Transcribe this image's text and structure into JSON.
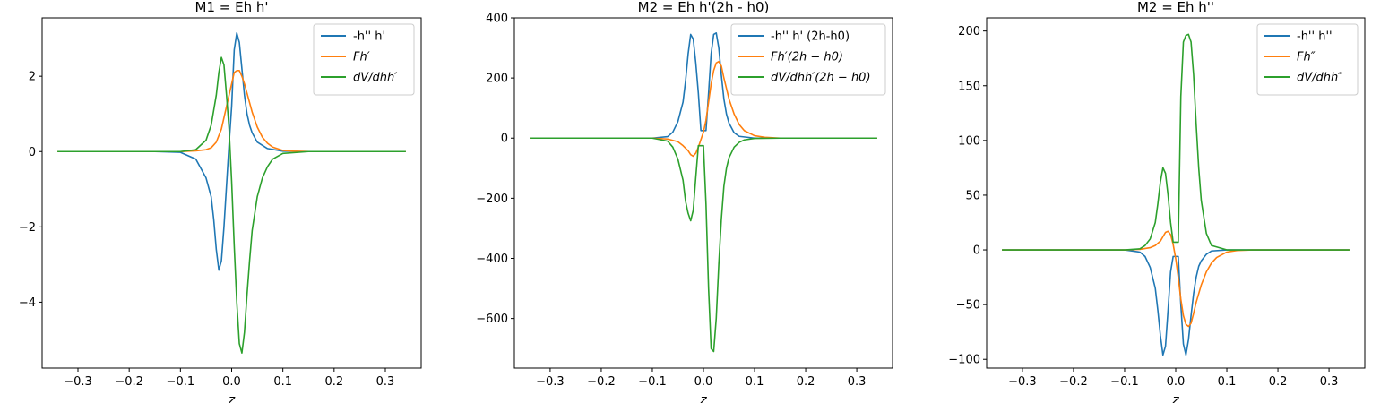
{
  "chart_data": [
    {
      "type": "line",
      "title": "M1 = Eh h'",
      "xlabel": "z",
      "ylabel": "",
      "xlim": [
        -0.37,
        0.37
      ],
      "ylim": [
        -5.75,
        3.55
      ],
      "xticks": [
        -0.3,
        -0.2,
        -0.1,
        0.0,
        0.1,
        0.2,
        0.3
      ],
      "xtick_labels": [
        "−0.3",
        "−0.2",
        "−0.1",
        "0.0",
        "0.1",
        "0.2",
        "0.3"
      ],
      "yticks": [
        -4,
        -2,
        0,
        2
      ],
      "ytick_labels": [
        "−4",
        "−2",
        "0",
        "2"
      ],
      "legend_position": "top-right",
      "series": [
        {
          "name": "-h'' h'",
          "color": "#1f77b4",
          "x": [
            -0.34,
            -0.15,
            -0.1,
            -0.07,
            -0.05,
            -0.04,
            -0.035,
            -0.03,
            -0.025,
            -0.02,
            -0.015,
            -0.01,
            -0.005,
            0.0,
            0.005,
            0.01,
            0.015,
            0.02,
            0.025,
            0.03,
            0.035,
            0.04,
            0.05,
            0.07,
            0.1,
            0.15,
            0.34
          ],
          "y": [
            0,
            0,
            -0.02,
            -0.2,
            -0.7,
            -1.2,
            -1.8,
            -2.6,
            -3.15,
            -2.9,
            -2.0,
            -0.9,
            0.2,
            1.2,
            2.7,
            3.15,
            2.9,
            2.2,
            1.5,
            1.0,
            0.7,
            0.5,
            0.25,
            0.08,
            0.01,
            0,
            0
          ]
        },
        {
          "name": "Fh'",
          "label": "Fh′",
          "color": "#ff7f0e",
          "x": [
            -0.34,
            -0.1,
            -0.07,
            -0.05,
            -0.04,
            -0.03,
            -0.02,
            -0.01,
            0.0,
            0.005,
            0.01,
            0.015,
            0.02,
            0.025,
            0.03,
            0.04,
            0.05,
            0.06,
            0.07,
            0.08,
            0.1,
            0.12,
            0.15,
            0.34
          ],
          "y": [
            0,
            0,
            0.02,
            0.05,
            0.1,
            0.25,
            0.6,
            1.2,
            1.8,
            2.1,
            2.15,
            2.15,
            2.0,
            1.8,
            1.55,
            1.05,
            0.65,
            0.38,
            0.22,
            0.12,
            0.03,
            0.01,
            0,
            0
          ]
        },
        {
          "name": "dV/dhh'",
          "label": "dV/dhh′",
          "color": "#2ca02c",
          "x": [
            -0.34,
            -0.1,
            -0.07,
            -0.05,
            -0.04,
            -0.03,
            -0.025,
            -0.02,
            -0.015,
            -0.01,
            -0.005,
            0.0,
            0.005,
            0.01,
            0.015,
            0.02,
            0.025,
            0.03,
            0.035,
            0.04,
            0.05,
            0.06,
            0.07,
            0.08,
            0.1,
            0.15,
            0.34
          ],
          "y": [
            0,
            0,
            0.05,
            0.3,
            0.7,
            1.5,
            2.1,
            2.5,
            2.3,
            1.5,
            0.6,
            -0.8,
            -2.5,
            -4.0,
            -5.1,
            -5.35,
            -4.8,
            -3.8,
            -2.9,
            -2.1,
            -1.2,
            -0.7,
            -0.4,
            -0.2,
            -0.05,
            0,
            0
          ]
        }
      ]
    },
    {
      "type": "line",
      "title": "M2 = Eh h'(2h - h0)",
      "xlabel": "z",
      "ylabel": "",
      "xlim": [
        -0.37,
        0.37
      ],
      "ylim": [
        -765,
        400
      ],
      "xticks": [
        -0.3,
        -0.2,
        -0.1,
        0.0,
        0.1,
        0.2,
        0.3
      ],
      "xtick_labels": [
        "−0.3",
        "−0.2",
        "−0.1",
        "0.0",
        "0.1",
        "0.2",
        "0.3"
      ],
      "yticks": [
        -600,
        -400,
        -200,
        0,
        200,
        400
      ],
      "ytick_labels": [
        "−600",
        "−400",
        "−200",
        "0",
        "200",
        "400"
      ],
      "legend_position": "top-right",
      "series": [
        {
          "name": "-h'' h' (2h-h0)",
          "color": "#1f77b4",
          "x": [
            -0.34,
            -0.1,
            -0.07,
            -0.06,
            -0.05,
            -0.04,
            -0.035,
            -0.03,
            -0.025,
            -0.02,
            -0.015,
            -0.01,
            -0.005,
            0.0,
            0.005,
            0.01,
            0.015,
            0.02,
            0.025,
            0.03,
            0.035,
            0.04,
            0.045,
            0.05,
            0.06,
            0.07,
            0.1,
            0.34
          ],
          "y": [
            0,
            0,
            5,
            20,
            55,
            120,
            190,
            280,
            345,
            330,
            250,
            150,
            25,
            25,
            25,
            150,
            280,
            345,
            350,
            300,
            210,
            130,
            80,
            50,
            18,
            6,
            0,
            0
          ]
        },
        {
          "name": "Fh'(2h-h0)",
          "label": "Fh′(2h − h0)",
          "color": "#ff7f0e",
          "x": [
            -0.34,
            -0.1,
            -0.07,
            -0.05,
            -0.04,
            -0.03,
            -0.025,
            -0.02,
            -0.015,
            -0.01,
            -0.005,
            0.0,
            0.005,
            0.01,
            0.015,
            0.02,
            0.025,
            0.03,
            0.035,
            0.04,
            0.05,
            0.06,
            0.07,
            0.08,
            0.1,
            0.12,
            0.15,
            0.34
          ],
          "y": [
            0,
            0,
            -3,
            -12,
            -25,
            -42,
            -55,
            -60,
            -50,
            -30,
            -5,
            20,
            60,
            120,
            180,
            225,
            250,
            255,
            240,
            200,
            130,
            80,
            45,
            25,
            8,
            3,
            0,
            0
          ]
        },
        {
          "name": "dV/dhh'(2h-h0)",
          "label": "dV/dhh′(2h − h0)",
          "color": "#2ca02c",
          "x": [
            -0.34,
            -0.1,
            -0.07,
            -0.06,
            -0.05,
            -0.04,
            -0.035,
            -0.03,
            -0.025,
            -0.02,
            -0.015,
            -0.01,
            -0.005,
            0.0,
            0.005,
            0.01,
            0.015,
            0.02,
            0.025,
            0.03,
            0.035,
            0.04,
            0.045,
            0.05,
            0.06,
            0.07,
            0.08,
            0.1,
            0.15,
            0.34
          ],
          "y": [
            0,
            0,
            -10,
            -30,
            -70,
            -140,
            -210,
            -250,
            -275,
            -240,
            -130,
            -25,
            -25,
            -25,
            -220,
            -500,
            -700,
            -710,
            -600,
            -420,
            -270,
            -160,
            -100,
            -65,
            -30,
            -14,
            -6,
            -1,
            0,
            0
          ]
        }
      ]
    },
    {
      "type": "line",
      "title": "M2 = Eh h''",
      "xlabel": "z",
      "ylabel": "",
      "xlim": [
        -0.37,
        0.37
      ],
      "ylim": [
        -108,
        212
      ],
      "xticks": [
        -0.3,
        -0.2,
        -0.1,
        0.0,
        0.1,
        0.2,
        0.3
      ],
      "xtick_labels": [
        "−0.3",
        "−0.2",
        "−0.1",
        "0.0",
        "0.1",
        "0.2",
        "0.3"
      ],
      "yticks": [
        -100,
        -50,
        0,
        50,
        100,
        150,
        200
      ],
      "ytick_labels": [
        "−100",
        "−50",
        "0",
        "50",
        "100",
        "150",
        "200"
      ],
      "legend_position": "top-right",
      "series": [
        {
          "name": "-h'' h''",
          "color": "#1f77b4",
          "x": [
            -0.34,
            -0.1,
            -0.07,
            -0.06,
            -0.05,
            -0.04,
            -0.035,
            -0.03,
            -0.025,
            -0.02,
            -0.015,
            -0.01,
            -0.005,
            0.0,
            0.005,
            0.01,
            0.015,
            0.02,
            0.025,
            0.03,
            0.035,
            0.04,
            0.045,
            0.05,
            0.06,
            0.07,
            0.1,
            0.34
          ],
          "y": [
            0,
            0,
            -2,
            -6,
            -16,
            -35,
            -55,
            -78,
            -96,
            -88,
            -55,
            -20,
            -6,
            -6,
            -6,
            -50,
            -86,
            -96,
            -82,
            -60,
            -40,
            -25,
            -15,
            -10,
            -4,
            -1,
            0,
            0
          ]
        },
        {
          "name": "Fh''",
          "label": "Fh″",
          "color": "#ff7f0e",
          "x": [
            -0.34,
            -0.1,
            -0.07,
            -0.05,
            -0.04,
            -0.03,
            -0.025,
            -0.02,
            -0.015,
            -0.01,
            -0.005,
            0.0,
            0.005,
            0.01,
            0.015,
            0.02,
            0.025,
            0.03,
            0.035,
            0.04,
            0.05,
            0.06,
            0.07,
            0.08,
            0.1,
            0.12,
            0.15,
            0.34
          ],
          "y": [
            0,
            0,
            0.5,
            2,
            4,
            8,
            12,
            16,
            17,
            14,
            5,
            -8,
            -25,
            -45,
            -60,
            -68,
            -70,
            -67,
            -58,
            -48,
            -32,
            -20,
            -12,
            -7,
            -2,
            -0.5,
            0,
            0
          ]
        },
        {
          "name": "dV/dhh''",
          "label": "dV/dhh″",
          "color": "#2ca02c",
          "x": [
            -0.34,
            -0.1,
            -0.07,
            -0.06,
            -0.05,
            -0.04,
            -0.035,
            -0.03,
            -0.025,
            -0.02,
            -0.015,
            -0.01,
            -0.005,
            0.0,
            0.005,
            0.01,
            0.015,
            0.02,
            0.025,
            0.03,
            0.035,
            0.04,
            0.045,
            0.05,
            0.06,
            0.07,
            0.1,
            0.34
          ],
          "y": [
            0,
            0,
            1,
            4,
            10,
            25,
            42,
            62,
            75,
            70,
            50,
            25,
            7,
            7,
            7,
            140,
            190,
            196,
            197,
            190,
            160,
            115,
            75,
            45,
            15,
            4,
            0,
            0
          ]
        }
      ]
    }
  ]
}
